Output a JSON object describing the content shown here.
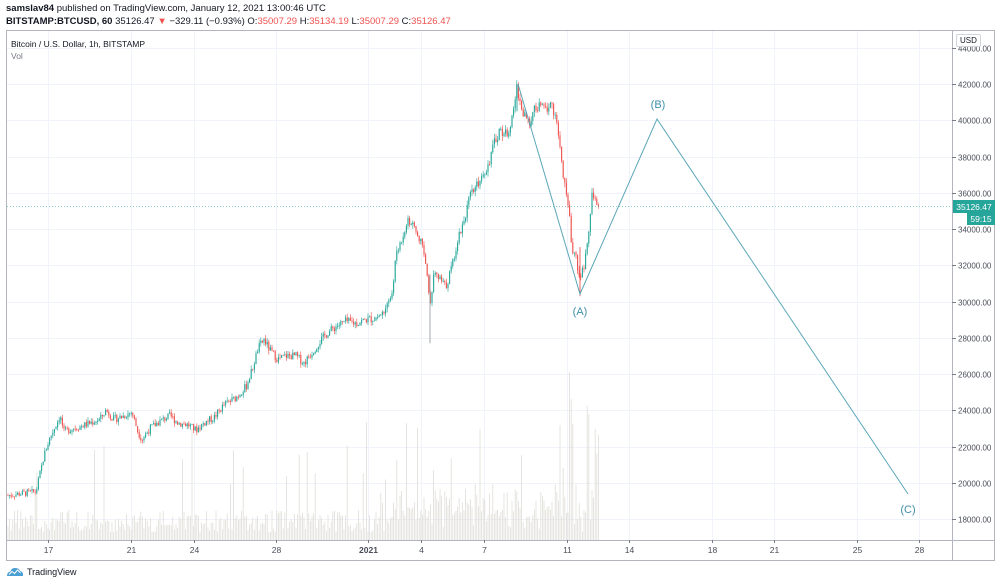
{
  "header": {
    "author": "samslav84",
    "published_text": "published on TradingView.com, January 12, 2021 13:00:46 UTC",
    "symbol": "BITSTAMP:BTCUSD, 60",
    "last_price": "35126.47",
    "change_icon": "down-triangle-icon",
    "change": "−329.11 (−0.93%)",
    "open_label": "O:",
    "open": "35007.29",
    "high_label": "H:",
    "high": "35134.19",
    "low_label": "L:",
    "low": "35007.29",
    "close_label": "C:",
    "close": "35126.47"
  },
  "legend": {
    "title": "Bitcoin / U.S. Dollar, 1h, BITSTAMP",
    "volume_label": "Vol"
  },
  "price_axis": {
    "currency_badge": "USD",
    "current_price_label": "35126.47",
    "countdown_label": "59:15"
  },
  "footer": {
    "brand": "TradingView"
  },
  "colors": {
    "up": "#26a69a",
    "down": "#ef5350",
    "drawing": "#5ba6b8",
    "price_label_bg": "#26a69a",
    "grid": "#f0f3fa",
    "volume": "#e0e3e8"
  },
  "chart_data": {
    "type": "candlestick",
    "title": "Bitcoin / U.S. Dollar, 1h, BITSTAMP",
    "xlabel": "",
    "ylabel": "USD",
    "ylim": [
      16800,
      44300
    ],
    "y_ticks": [
      "18000.00",
      "20000.00",
      "22000.00",
      "24000.00",
      "26000.00",
      "28000.00",
      "30000.00",
      "32000.00",
      "34000.00",
      "36000.00",
      "38000.00",
      "40000.00",
      "42000.00",
      "44000.00"
    ],
    "x_ticks": [
      "17",
      "21",
      "24",
      "28",
      "2021",
      "4",
      "7",
      "11",
      "14",
      "18",
      "21",
      "25",
      "28"
    ],
    "grid": true,
    "current_price": 35126.47,
    "price_path_approx": [
      {
        "date": "Dec 15",
        "price": 19300
      },
      {
        "date": "Dec 16",
        "price": 19500
      },
      {
        "date": "Dec 17",
        "price": 22800
      },
      {
        "date": "Dec 17 high",
        "price": 23800
      },
      {
        "date": "Dec 19",
        "price": 23300
      },
      {
        "date": "Dec 20",
        "price": 23900
      },
      {
        "date": "Dec 21",
        "price": 22400
      },
      {
        "date": "Dec 22",
        "price": 23500
      },
      {
        "date": "Dec 23",
        "price": 23700
      },
      {
        "date": "Dec 24",
        "price": 22900
      },
      {
        "date": "Dec 25",
        "price": 24500
      },
      {
        "date": "Dec 26",
        "price": 25000
      },
      {
        "date": "Dec 27",
        "price": 27800
      },
      {
        "date": "Dec 28",
        "price": 26600
      },
      {
        "date": "Dec 29",
        "price": 26800
      },
      {
        "date": "Dec 30",
        "price": 28600
      },
      {
        "date": "Dec 31",
        "price": 29000
      },
      {
        "date": "Jan 1",
        "price": 29300
      },
      {
        "date": "Jan 2",
        "price": 32000
      },
      {
        "date": "Jan 3",
        "price": 34700
      },
      {
        "date": "Jan 3 b",
        "price": 33500
      },
      {
        "date": "Jan 4 low",
        "price": 27700
      },
      {
        "date": "Jan 4",
        "price": 31500
      },
      {
        "date": "Jan 5",
        "price": 33800
      },
      {
        "date": "Jan 6",
        "price": 36500
      },
      {
        "date": "Jan 7",
        "price": 39500
      },
      {
        "date": "Jan 8 high",
        "price": 41900
      },
      {
        "date": "Jan 9",
        "price": 40500
      },
      {
        "date": "Jan 10",
        "price": 38500
      },
      {
        "date": "Jan 11",
        "price": 33000
      },
      {
        "date": "Jan 11 low",
        "price": 30500
      },
      {
        "date": "Jan 12",
        "price": 35126.47
      }
    ],
    "annotations": [
      {
        "label": "(A)",
        "date": "Jan 11",
        "price": 30300
      },
      {
        "label": "(B)",
        "date": "Jan 15",
        "price": 40000
      },
      {
        "label": "(C)",
        "date": "Jan 27",
        "price": 19300
      }
    ],
    "drawing_path": [
      {
        "point": "start",
        "date": "Jan 8",
        "price": 41900
      },
      {
        "point": "A",
        "date": "Jan 11",
        "price": 30300
      },
      {
        "point": "B",
        "date": "Jan 15",
        "price": 40000
      },
      {
        "point": "C",
        "date": "Jan 27",
        "price": 19300
      }
    ]
  }
}
